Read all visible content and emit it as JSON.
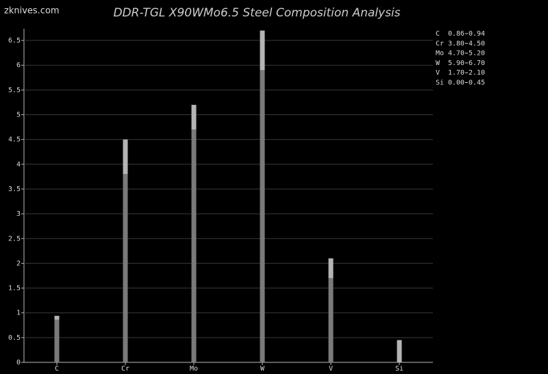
{
  "watermark": "zknives.com",
  "chart_data": {
    "type": "range_bar",
    "title": "DDR-TGL X90WMo6.5 Steel Composition Analysis",
    "categories": [
      "C",
      "Cr",
      "Mo",
      "W",
      "V",
      "Si"
    ],
    "low": {
      "values": [
        0.86,
        3.8,
        4.7,
        5.9,
        1.7,
        0
      ],
      "value_labels": [
        "0.86",
        "3.80",
        "4.70",
        "5.90",
        "1.70",
        "0.00"
      ],
      "color": "#7a7a7a"
    },
    "high": {
      "values": [
        0.94,
        4.5,
        5.2,
        6.7,
        2.1,
        0.45
      ],
      "value_labels": [
        "0.94",
        "4.50",
        "5.20",
        "6.70",
        "2.10",
        "0.45"
      ],
      "color": "#b4b4b4"
    },
    "ylim": [
      0,
      6.7
    ],
    "yticks": [
      0,
      0.5,
      1,
      1.5,
      2,
      2.5,
      3,
      3.5,
      4,
      4.5,
      5,
      5.5,
      6,
      6.5
    ],
    "grid": true
  }
}
